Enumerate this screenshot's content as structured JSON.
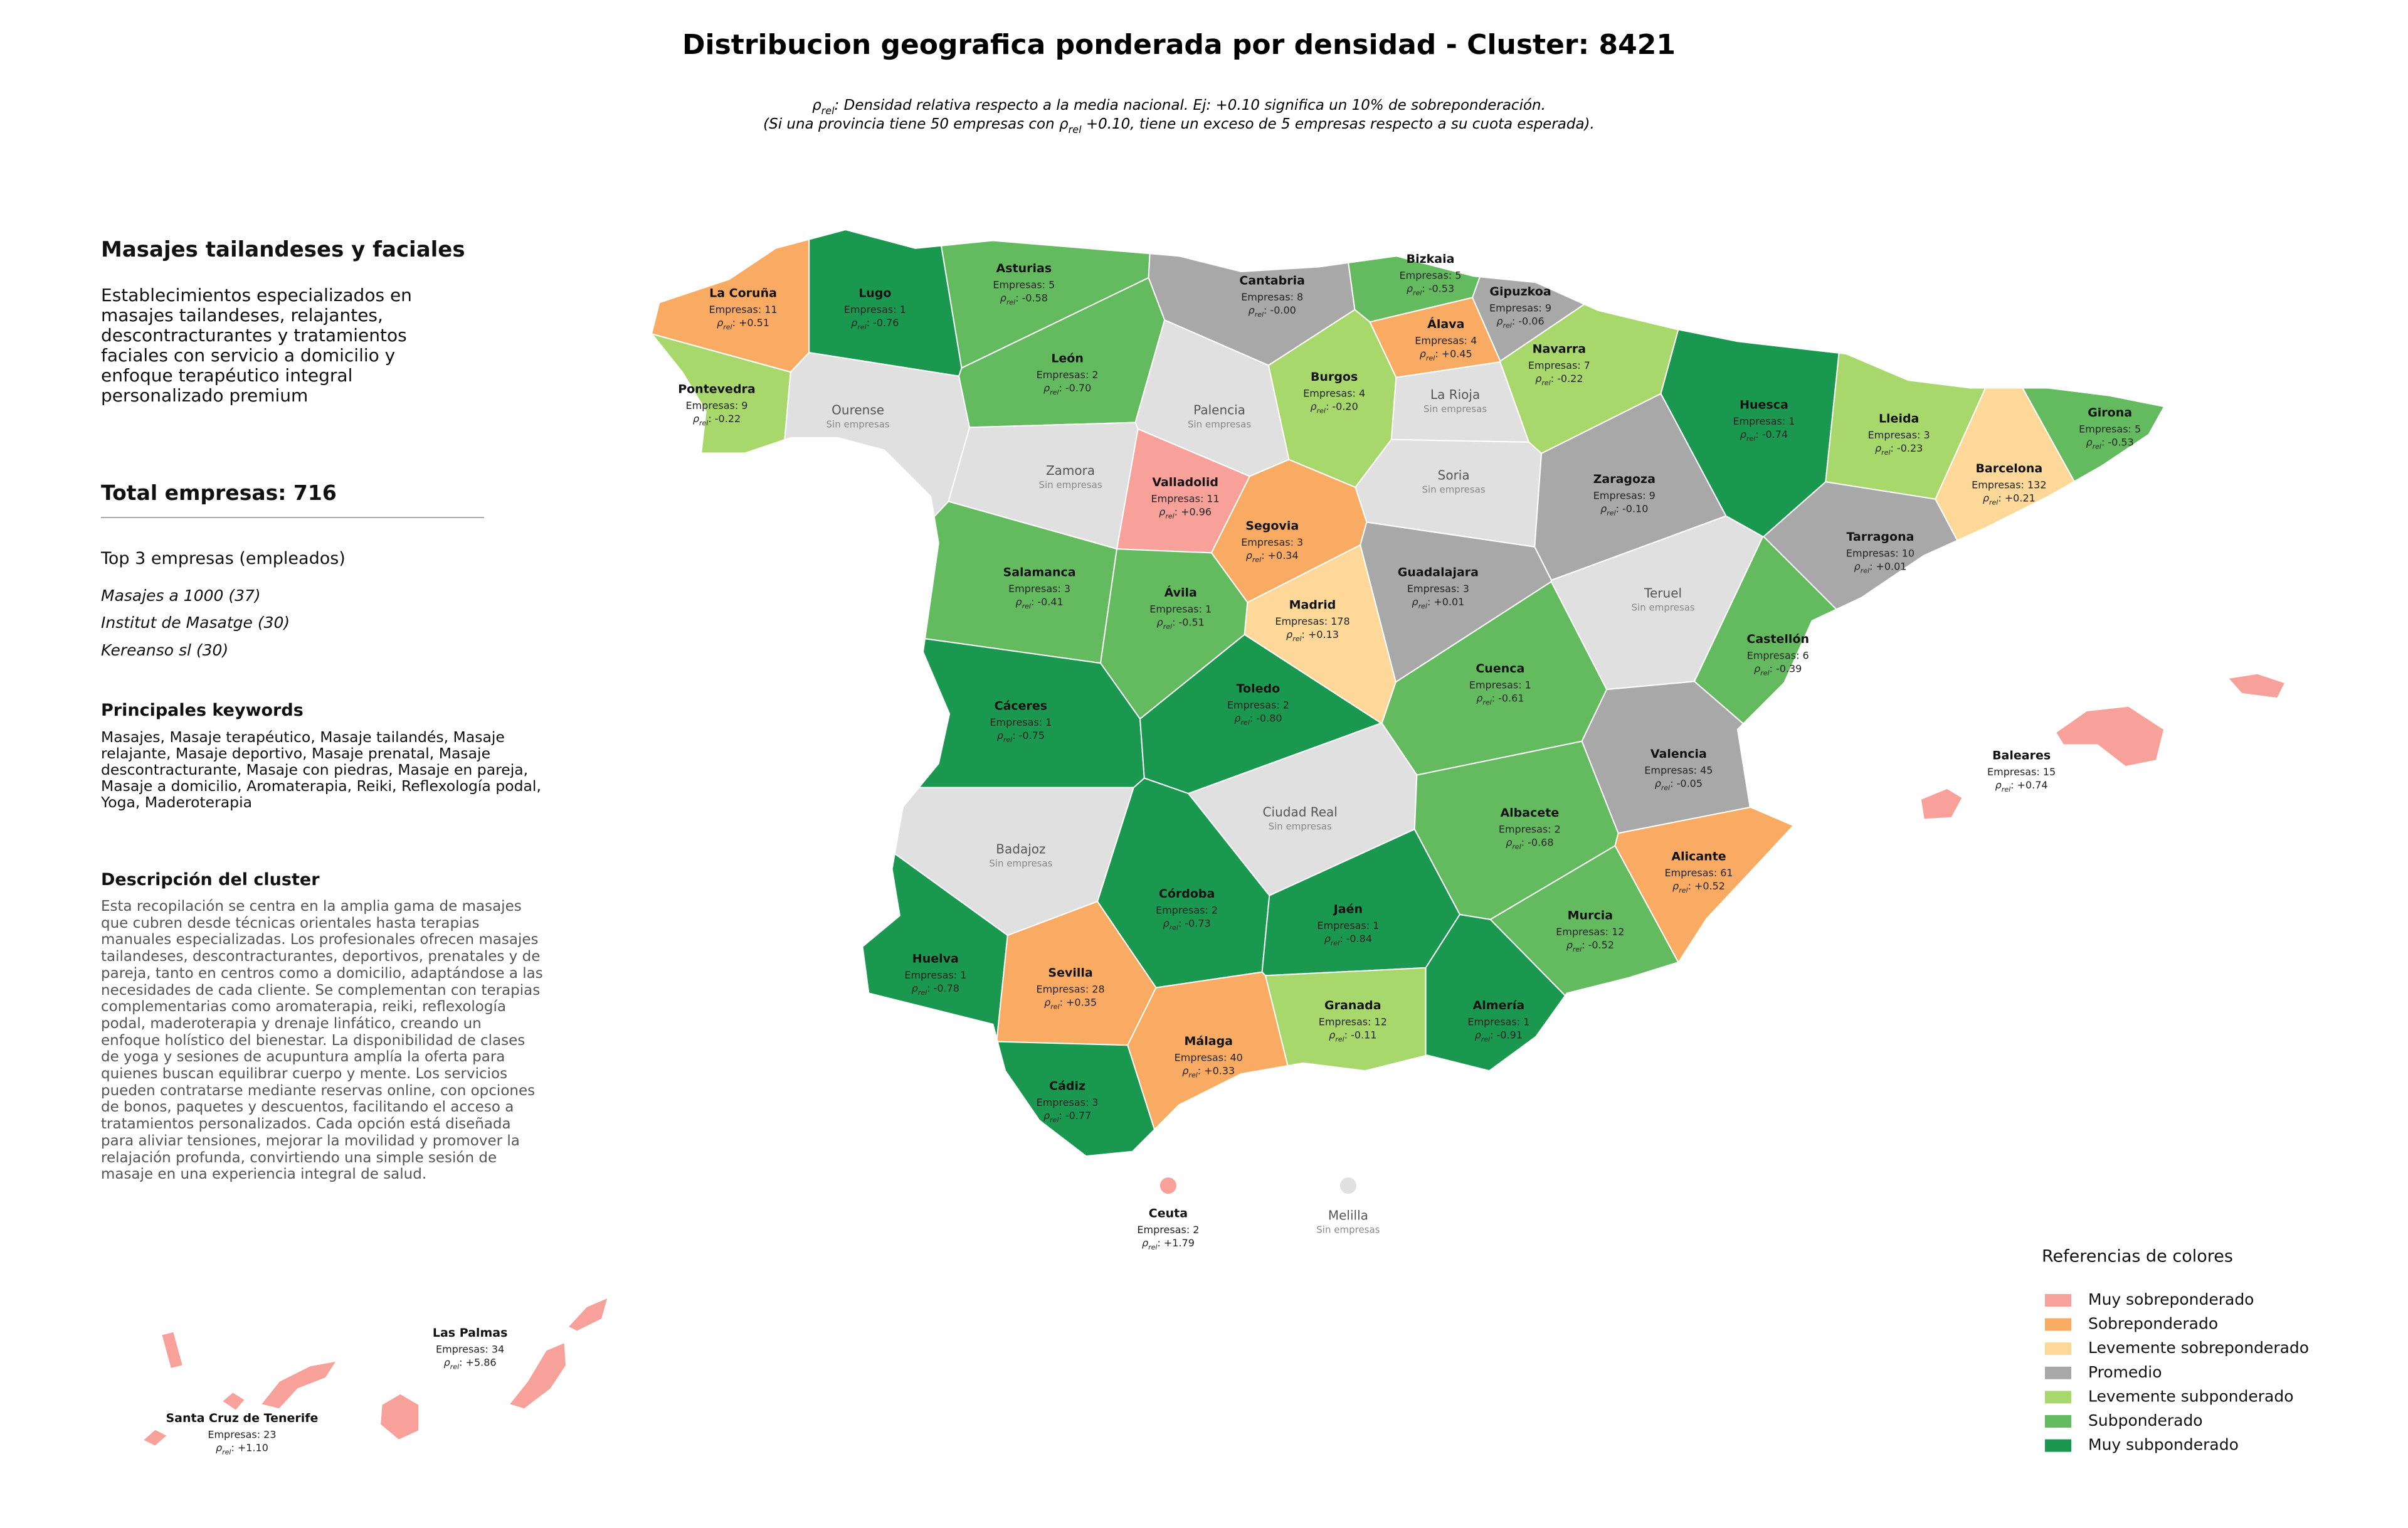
{
  "title": "Distribucion geografica ponderada por densidad - Cluster: 8421",
  "subtitle_lines": [
    [
      {
        "t": "ρ"
      },
      {
        "sub": "rel"
      },
      {
        "t": ": Densidad relativa respecto a la media nacional. Ej: +0.10 significa un 10% de sobreponderación."
      }
    ],
    [
      {
        "t": "(Si una provincia tiene 50 empresas con "
      },
      {
        "t": "ρ"
      },
      {
        "sub": "rel"
      },
      {
        "t": " +0.10, tiene un exceso de 5 empresas respecto a su cuota esperada)."
      }
    ]
  ],
  "sidebar": {
    "heading": "Masajes tailandeses y faciales",
    "summary": "Establecimientos especializados en masajes tailandeses, relajantes, descontracturantes y tratamientos faciales con servicio a domicilio y enfoque terapéutico integral personalizado premium",
    "total": "Total empresas: 716",
    "top_title": "Top 3 empresas (empleados)",
    "top": [
      "Masajes a 1000 (37)",
      "Institut de Masatge (30)",
      "Kereanso sl (30)"
    ],
    "keywords_title": "Principales keywords",
    "keywords": "Masajes, Masaje terapéutico, Masaje tailandés, Masaje relajante, Masaje deportivo, Masaje prenatal, Masaje descontracturante, Masaje con piedras, Masaje en pareja, Masaje a domicilio, Aromaterapia, Reiki, Reflexología podal, Yoga, Maderoterapia",
    "description_title": "Descripción del cluster",
    "description": "Esta recopilación se centra en la amplia gama de masajes que cubren desde técnicas orientales hasta terapias manuales especializadas. Los profesionales ofrecen masajes tailandeses, descontracturantes, deportivos, prenatales y de pareja, tanto en centros como a domicilio, adaptándose a las necesidades de cada cliente. Se complementan con terapias complementarias como aromaterapia, reiki, reflexología podal, maderoterapia y drenaje linfático, creando un enfoque holístico del bienestar. La disponibilidad de clases de yoga y sesiones de acupuntura amplía la oferta para quienes buscan equilibrar cuerpo y mente. Los servicios pueden contratarse mediante reservas online, con opciones de bonos, paquetes y descuentos, facilitando el acceso a tratamientos personalizados. Cada opción está diseñada para aliviar tensiones, mejorar la movilidad y promover la relajación profunda, convirtiendo una simple sesión de masaje en una experiencia integral de salud."
  },
  "empresas_label": "Empresas:",
  "rho_label": {
    "symbol": "ρ",
    "sub": "rel",
    "sep": ":"
  },
  "no_data_label": "Sin empresas",
  "no_data_color": "#e0e0e0",
  "legend": {
    "title": "Referencias de colores",
    "items": [
      {
        "name": "Muy sobreponderado",
        "color": "#f8a19b"
      },
      {
        "name": "Sobreponderado",
        "color": "#f9ab63"
      },
      {
        "name": "Levemente sobreponderado",
        "color": "#fdd898"
      },
      {
        "name": "Promedio",
        "color": "#a8a8a8"
      },
      {
        "name": "Levemente subponderado",
        "color": "#a8d86c"
      },
      {
        "name": "Subponderado",
        "color": "#64bb5f"
      },
      {
        "name": "Muy subponderado",
        "color": "#1a9850"
      }
    ]
  },
  "provinces": [
    {
      "name": "La Coruña",
      "empresas": 11,
      "rho": "+0.51",
      "category": 1
    },
    {
      "name": "Lugo",
      "empresas": 1,
      "rho": "-0.76",
      "category": 6
    },
    {
      "name": "Asturias",
      "empresas": 5,
      "rho": "-0.58",
      "category": 5
    },
    {
      "name": "Cantabria",
      "empresas": 8,
      "rho": "-0.00",
      "category": 3
    },
    {
      "name": "Bizkaia",
      "empresas": 5,
      "rho": "-0.53",
      "category": 5
    },
    {
      "name": "Gipuzkoa",
      "empresas": 9,
      "rho": "-0.06",
      "category": 3
    },
    {
      "name": "Álava",
      "empresas": 4,
      "rho": "+0.45",
      "category": 1
    },
    {
      "name": "Navarra",
      "empresas": 7,
      "rho": "-0.22",
      "category": 4
    },
    {
      "name": "Pontevedra",
      "empresas": 9,
      "rho": "-0.22",
      "category": 4
    },
    {
      "name": "Ourense"
    },
    {
      "name": "León",
      "empresas": 2,
      "rho": "-0.70",
      "category": 5
    },
    {
      "name": "Palencia"
    },
    {
      "name": "Burgos",
      "empresas": 4,
      "rho": "-0.20",
      "category": 4
    },
    {
      "name": "La Rioja"
    },
    {
      "name": "Huesca",
      "empresas": 1,
      "rho": "-0.74",
      "category": 6
    },
    {
      "name": "Lleida",
      "empresas": 3,
      "rho": "-0.23",
      "category": 4
    },
    {
      "name": "Girona",
      "empresas": 5,
      "rho": "-0.53",
      "category": 5
    },
    {
      "name": "Zamora"
    },
    {
      "name": "Valladolid",
      "empresas": 11,
      "rho": "+0.96",
      "category": 0
    },
    {
      "name": "Soria"
    },
    {
      "name": "Zaragoza",
      "empresas": 9,
      "rho": "-0.10",
      "category": 3
    },
    {
      "name": "Barcelona",
      "empresas": 132,
      "rho": "+0.21",
      "category": 2
    },
    {
      "name": "Segovia",
      "empresas": 3,
      "rho": "+0.34",
      "category": 1
    },
    {
      "name": "Tarragona",
      "empresas": 10,
      "rho": "+0.01",
      "category": 3
    },
    {
      "name": "Salamanca",
      "empresas": 3,
      "rho": "-0.41",
      "category": 5
    },
    {
      "name": "Ávila",
      "empresas": 1,
      "rho": "-0.51",
      "category": 5
    },
    {
      "name": "Madrid",
      "empresas": 178,
      "rho": "+0.13",
      "category": 2
    },
    {
      "name": "Guadalajara",
      "empresas": 3,
      "rho": "+0.01",
      "category": 3
    },
    {
      "name": "Teruel"
    },
    {
      "name": "Castellón",
      "empresas": 6,
      "rho": "-0.39",
      "category": 5
    },
    {
      "name": "Cuenca",
      "empresas": 1,
      "rho": "-0.61",
      "category": 5
    },
    {
      "name": "Cáceres",
      "empresas": 1,
      "rho": "-0.75",
      "category": 6
    },
    {
      "name": "Toledo",
      "empresas": 2,
      "rho": "-0.80",
      "category": 6
    },
    {
      "name": "Valencia",
      "empresas": 45,
      "rho": "-0.05",
      "category": 3
    },
    {
      "name": "Ciudad Real"
    },
    {
      "name": "Badajoz"
    },
    {
      "name": "Albacete",
      "empresas": 2,
      "rho": "-0.68",
      "category": 5
    },
    {
      "name": "Alicante",
      "empresas": 61,
      "rho": "+0.52",
      "category": 1
    },
    {
      "name": "Córdoba",
      "empresas": 2,
      "rho": "-0.73",
      "category": 6
    },
    {
      "name": "Jaén",
      "empresas": 1,
      "rho": "-0.84",
      "category": 6
    },
    {
      "name": "Murcia",
      "empresas": 12,
      "rho": "-0.52",
      "category": 5
    },
    {
      "name": "Huelva",
      "empresas": 1,
      "rho": "-0.78",
      "category": 6
    },
    {
      "name": "Sevilla",
      "empresas": 28,
      "rho": "+0.35",
      "category": 1
    },
    {
      "name": "Granada",
      "empresas": 12,
      "rho": "-0.11",
      "category": 4
    },
    {
      "name": "Almería",
      "empresas": 1,
      "rho": "-0.91",
      "category": 6
    },
    {
      "name": "Málaga",
      "empresas": 40,
      "rho": "+0.33",
      "category": 1
    },
    {
      "name": "Cádiz",
      "empresas": 3,
      "rho": "-0.77",
      "category": 6
    },
    {
      "name": "Baleares",
      "empresas": 15,
      "rho": "+0.74",
      "category": 0
    },
    {
      "name": "Ceuta",
      "empresas": 2,
      "rho": "+1.79",
      "category": 0
    },
    {
      "name": "Melilla"
    },
    {
      "name": "Las Palmas",
      "empresas": 34,
      "rho": "+5.86",
      "category": 0
    },
    {
      "name": "Santa Cruz de Tenerife",
      "empresas": 23,
      "rho": "+1.10",
      "category": 0
    }
  ]
}
